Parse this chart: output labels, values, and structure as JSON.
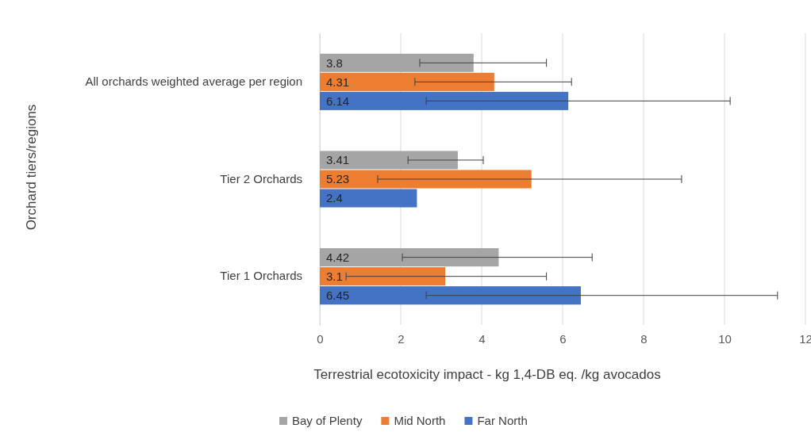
{
  "chart_data": {
    "type": "bar",
    "orientation": "horizontal",
    "xlabel": "Terrestrial ecotoxicity impact - kg 1,4-DB eq. /kg avocados",
    "ylabel": "Orchard tiers/regions",
    "categories": [
      "All orchards weighted average per region",
      "Tier 2 Orchards",
      "Tier 1 Orchards"
    ],
    "series": [
      {
        "name": "Bay of Plenty",
        "color": "#a5a5a5",
        "values": [
          3.8,
          3.41,
          4.42
        ],
        "errors": [
          [
            2.47,
            5.6
          ],
          [
            2.18,
            4.04
          ],
          [
            2.04,
            6.73
          ]
        ]
      },
      {
        "name": "Mid North",
        "color": "#ed7d31",
        "values": [
          4.31,
          5.23,
          3.1
        ],
        "errors": [
          [
            2.35,
            6.22
          ],
          [
            1.43,
            8.94
          ],
          [
            0.65,
            5.6
          ]
        ]
      },
      {
        "name": "Far North",
        "color": "#4472c4",
        "values": [
          6.14,
          2.4,
          6.45
        ],
        "errors": [
          [
            2.63,
            10.14
          ],
          null,
          [
            2.63,
            11.31
          ]
        ]
      }
    ],
    "xlim": [
      0,
      12
    ],
    "xticks": [
      0,
      2,
      4,
      6,
      8,
      10,
      12
    ],
    "grid": "x",
    "legend": "bottom",
    "data_labels": true
  }
}
